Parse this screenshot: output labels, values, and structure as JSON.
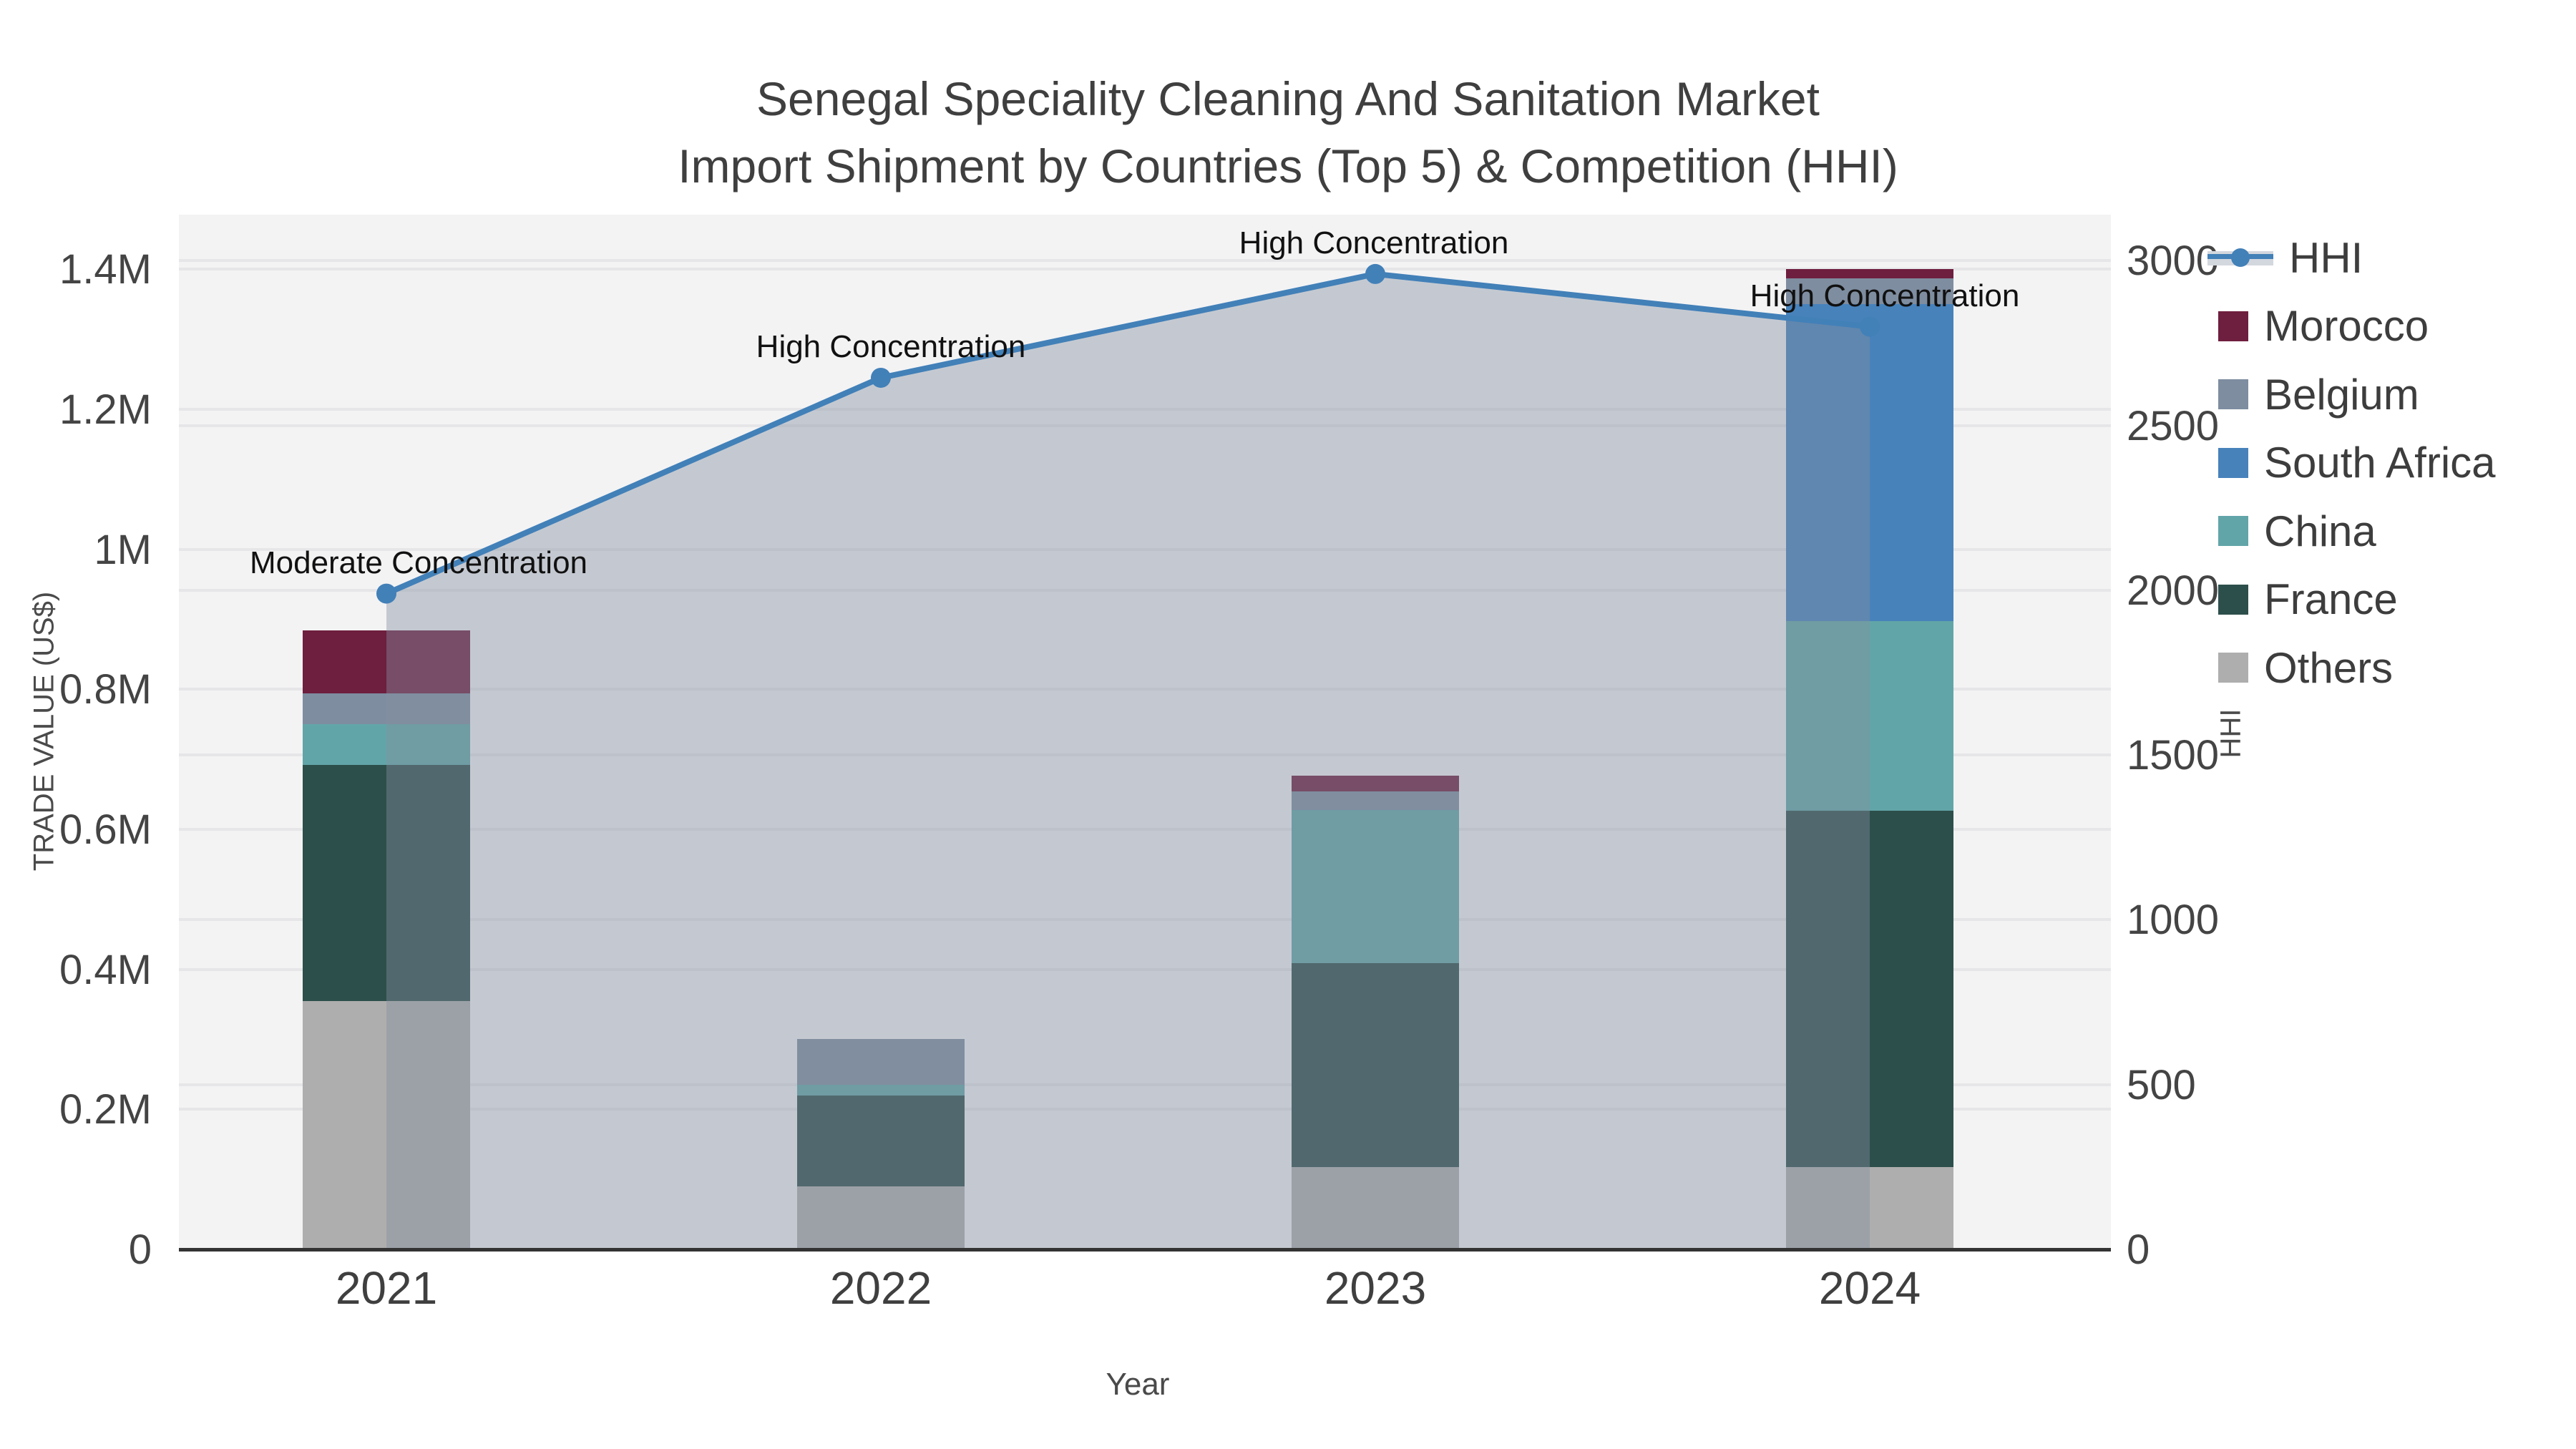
{
  "title": {
    "line1": "Senegal Speciality Cleaning And Sanitation Market",
    "line2": "Import Shipment by Countries (Top 5) & Competition (HHI)"
  },
  "axes": {
    "x_title": "Year",
    "y_left_title": "TRADE VALUE (US$)",
    "y_right_title": "HHI",
    "y_left_ticks": [
      {
        "label": "0",
        "value": 0
      },
      {
        "label": "0.2M",
        "value": 0.2
      },
      {
        "label": "0.4M",
        "value": 0.4
      },
      {
        "label": "0.6M",
        "value": 0.6
      },
      {
        "label": "0.8M",
        "value": 0.8
      },
      {
        "label": "1M",
        "value": 1.0
      },
      {
        "label": "1.2M",
        "value": 1.2
      },
      {
        "label": "1.4M",
        "value": 1.4
      }
    ],
    "y_right_ticks": [
      {
        "label": "0",
        "value": 0
      },
      {
        "label": "500",
        "value": 500
      },
      {
        "label": "1000",
        "value": 1000
      },
      {
        "label": "1500",
        "value": 1500
      },
      {
        "label": "2000",
        "value": 2000
      },
      {
        "label": "2500",
        "value": 2500
      },
      {
        "label": "3000",
        "value": 3000
      }
    ]
  },
  "chart_data": {
    "type": [
      "stacked-bar",
      "line-area"
    ],
    "categories": [
      "2021",
      "2022",
      "2023",
      "2024"
    ],
    "values_unit": "US$ millions (left axis), HHI index (right axis)",
    "ylim_left": [
      0,
      1.478
    ],
    "ylim_right": [
      0,
      3140
    ],
    "series": [
      {
        "name": "Others",
        "color": "#aeaeae",
        "values": [
          0.355,
          0.09,
          0.118,
          0.118
        ]
      },
      {
        "name": "France",
        "color": "#2d4f4b",
        "values": [
          0.337,
          0.13,
          0.291,
          0.509
        ]
      },
      {
        "name": "China",
        "color": "#62a5a8",
        "values": [
          0.058,
          0.015,
          0.219,
          0.27
        ]
      },
      {
        "name": "South Africa",
        "color": "#4782bb",
        "values": [
          0.0,
          0.0,
          0.0,
          0.453
        ]
      },
      {
        "name": "Belgium",
        "color": "#7e8da0",
        "values": [
          0.044,
          0.065,
          0.026,
          0.037
        ]
      },
      {
        "name": "Morocco",
        "color": "#6e1e3e",
        "values": [
          0.09,
          0.0,
          0.023,
          0.013
        ]
      }
    ],
    "bar_totals": [
      0.884,
      0.3,
      0.677,
      1.4
    ],
    "hhi": {
      "name": "HHI",
      "line_color": "#4280b8",
      "area_color": "rgba(130,142,160,0.42)",
      "values": [
        1990,
        2645,
        2960,
        2800
      ]
    },
    "annotations": [
      {
        "year": "2021",
        "text": "Moderate Concentration"
      },
      {
        "year": "2022",
        "text": "High Concentration"
      },
      {
        "year": "2023",
        "text": "High Concentration"
      },
      {
        "year": "2024",
        "text": "High Concentration"
      }
    ],
    "legend_position": "top-right",
    "grid": true
  },
  "legend": {
    "items": [
      {
        "label": "HHI",
        "type": "line",
        "color": "#4280b8"
      },
      {
        "label": "Morocco",
        "type": "swatch",
        "color": "#6e1e3e"
      },
      {
        "label": "Belgium",
        "type": "swatch",
        "color": "#7e8da0"
      },
      {
        "label": "South Africa",
        "type": "swatch",
        "color": "#4782bb"
      },
      {
        "label": "China",
        "type": "swatch",
        "color": "#62a5a8"
      },
      {
        "label": "France",
        "type": "swatch",
        "color": "#2d4f4b"
      },
      {
        "label": "Others",
        "type": "swatch",
        "color": "#aeaeae"
      }
    ]
  },
  "colors": {
    "plot_background": "#f3f3f4",
    "figure_background": "#ffffff",
    "gridline": "#e6e6e8",
    "axis_line": "#333333",
    "tick_text": "#444444",
    "title_text": "#3f3f3f",
    "annotation_text": "#111111"
  }
}
